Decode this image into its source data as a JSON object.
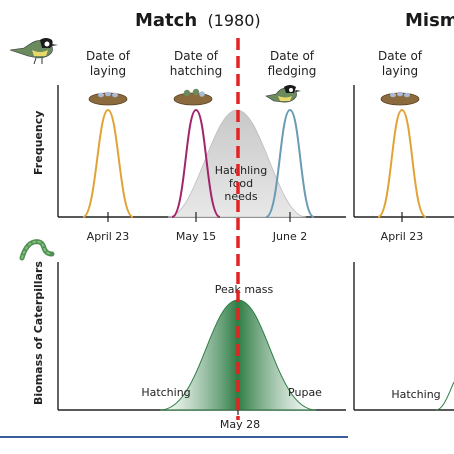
{
  "panels": {
    "match": {
      "title": "Match",
      "year": "(1980)"
    },
    "mismatch": {
      "title": "Mism"
    }
  },
  "top_chart": {
    "ylabel": "Frequency",
    "curve_labels": [
      {
        "line1": "Date of",
        "line2": "laying"
      },
      {
        "line1": "Date of",
        "line2": "hatching"
      },
      {
        "line1": "Date of",
        "line2": "fledging"
      }
    ],
    "ticks": [
      "April 23",
      "May 15",
      "June 2"
    ],
    "food_needs": {
      "line1": "Hatchling",
      "line2": "food",
      "line3": "needs"
    },
    "mismatch_label": {
      "line1": "Date of",
      "line2": "laying"
    },
    "mismatch_tick": "April 23"
  },
  "bottom_chart": {
    "ylabel": "Biomass of Caterpillars",
    "peak_label": "Peak mass",
    "left_label": "Hatching",
    "right_label": "Pupae",
    "tick": "May 28",
    "mismatch_left_label": "Hatching"
  },
  "colors": {
    "laying_curve": "#e2a336",
    "hatching_curve": "#a3246b",
    "fledging_curve": "#6a9bb5",
    "food_needs_fill": "#d9d9d9",
    "caterpillar_fill": "#2f7d45",
    "match_line": "#e52222",
    "bottom_rule": "#3a5d9c"
  },
  "icons": [
    "bird-icon",
    "nest-icon",
    "caterpillar-icon"
  ]
}
